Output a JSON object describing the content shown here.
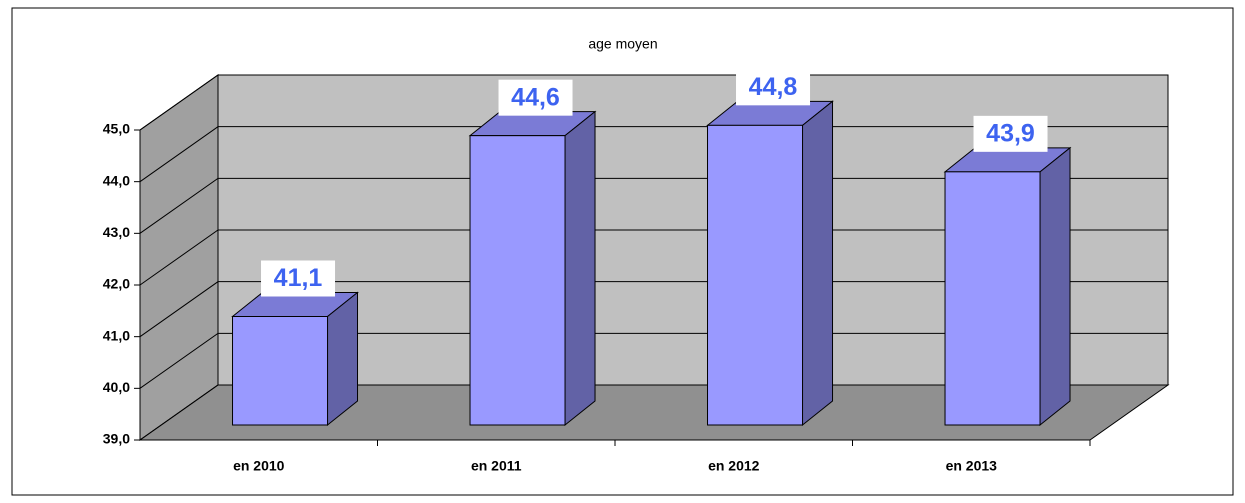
{
  "chart_data": {
    "type": "bar3d",
    "title": "age moyen",
    "categories": [
      "en 2010",
      "en 2011",
      "en 2012",
      "en 2013"
    ],
    "values": [
      41.1,
      44.6,
      44.8,
      43.9
    ],
    "value_labels": [
      "41,1",
      "44,6",
      "44,8",
      "43,9"
    ],
    "color": "#9999ff",
    "ylim": [
      39,
      45
    ],
    "yticks": [
      {
        "value": 39,
        "label": "39,0"
      },
      {
        "value": 40,
        "label": "40,0"
      },
      {
        "value": 41,
        "label": "41,0"
      },
      {
        "value": 42,
        "label": "42,0"
      },
      {
        "value": 43,
        "label": "43,0"
      },
      {
        "value": 44,
        "label": "44,0"
      },
      {
        "value": 45,
        "label": "45,0"
      }
    ],
    "grid": true
  }
}
